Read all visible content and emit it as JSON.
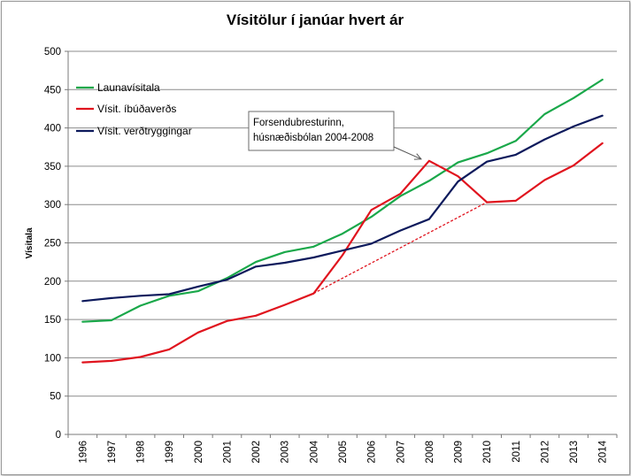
{
  "chart_data": {
    "type": "line",
    "title": "Vísitölur í janúar hvert ár",
    "xlabel": "",
    "ylabel": "Vísitala",
    "ylim": [
      0,
      500
    ],
    "yticks": [
      0,
      50,
      100,
      150,
      200,
      250,
      300,
      350,
      400,
      450,
      500
    ],
    "grid": true,
    "legend_position": "top-left",
    "categories": [
      "1996",
      "1997",
      "1998",
      "1999",
      "2000",
      "2001",
      "2002",
      "2003",
      "2004",
      "2005",
      "2006",
      "2007",
      "2008",
      "2009",
      "2010",
      "2011",
      "2012",
      "2013",
      "2014"
    ],
    "series": [
      {
        "name": "Launavísitala",
        "color": "#1aa84a",
        "values": [
          147,
          149,
          168,
          181,
          187,
          204,
          225,
          238,
          245,
          262,
          284,
          311,
          331,
          355,
          367,
          383,
          418,
          439,
          463
        ]
      },
      {
        "name": "Vísit. íbúðaverðs",
        "color": "#e0141e",
        "values": [
          94,
          96,
          101,
          111,
          133,
          148,
          155,
          169,
          184,
          234,
          293,
          314,
          357,
          337,
          303,
          305,
          332,
          351,
          380
        ]
      },
      {
        "name": "Vísit. verðtryggingar",
        "color": "#0d1a5c",
        "values": [
          174,
          178,
          181,
          183,
          193,
          202,
          219,
          224,
          231,
          240,
          249,
          266,
          281,
          330,
          356,
          365,
          385,
          402,
          416
        ]
      }
    ],
    "trend_line": {
      "from": [
        "2004",
        184
      ],
      "to": [
        "2010",
        303
      ],
      "style": "dashed",
      "color": "#e0141e"
    },
    "annotation": {
      "lines": [
        "Forsendubresturinn,",
        "húsnæðisbólan 2004-2008"
      ],
      "points_to": [
        "2008",
        357
      ]
    }
  }
}
